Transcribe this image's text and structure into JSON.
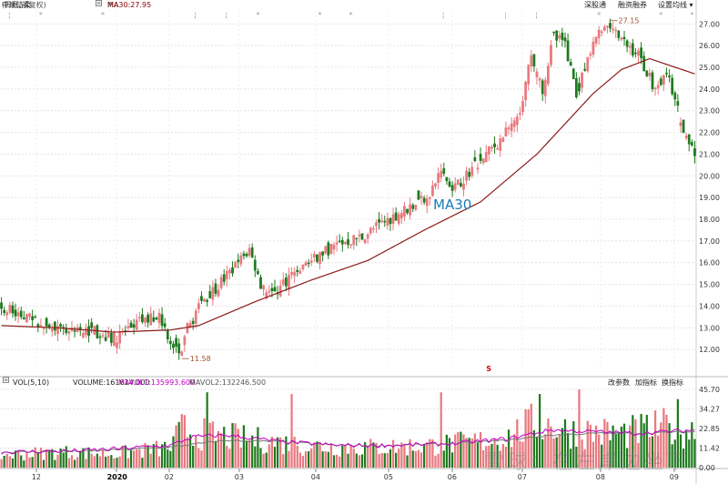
{
  "header": {
    "stock_name": "中顺洁柔",
    "period": "(日线,前复权)",
    "ma_label": "MA",
    "ma30_value": "MA30:27.95",
    "btn_shen_gu_tong": "深股通",
    "btn_rong_zi": "融资融券",
    "btn_settings": "设置均线"
  },
  "volume_header": {
    "vol_label": "VOL(5,10)",
    "volume": "VOLUME:161614.000",
    "mavol1": "MAVOL1:135993.600",
    "mavol2": "MAVOL2:132246.500",
    "btn_params": "改参数",
    "btn_add": "加指标",
    "btn_switch": "换指标"
  },
  "annotations": {
    "ma30_label": "MA30",
    "high_marker": "27.15",
    "low_marker": "11.58",
    "s_marker": "S",
    "watermark": "雪球：在左岸边坐下"
  },
  "colors": {
    "up": "#e8797f",
    "down": "#1e7a1e",
    "ma30": "#8b1a1a",
    "mavol1": "#c000c0",
    "mavol2": "#777777"
  },
  "chart_data": [
    {
      "type": "candlestick",
      "title": "中顺洁柔 (日线,前复权)",
      "ylim": [
        11.0,
        27.6
      ],
      "y_ticks": [
        "27.00",
        "26.00",
        "25.00",
        "24.00",
        "23.00",
        "22.00",
        "21.00",
        "20.00",
        "19.00",
        "18.00",
        "17.00",
        "16.00",
        "15.00",
        "14.00",
        "13.00",
        "12.00"
      ],
      "x_ticks": [
        "12",
        "2020",
        "02",
        "03",
        "04",
        "05",
        "06",
        "07",
        "08",
        "09"
      ],
      "close_path": [
        [
          0,
          14.0
        ],
        [
          8,
          13.5
        ],
        [
          16,
          13.0
        ],
        [
          24,
          12.7
        ],
        [
          32,
          12.9
        ],
        [
          40,
          12.5
        ],
        [
          48,
          13.2
        ],
        [
          56,
          13.6
        ],
        [
          60,
          12.4
        ],
        [
          64,
          11.7
        ],
        [
          66,
          13.0
        ],
        [
          72,
          14.3
        ],
        [
          80,
          15.4
        ],
        [
          88,
          16.6
        ],
        [
          92,
          15.0
        ],
        [
          96,
          14.5
        ],
        [
          104,
          15.6
        ],
        [
          112,
          16.3
        ],
        [
          120,
          16.9
        ],
        [
          128,
          17.2
        ],
        [
          136,
          17.9
        ],
        [
          144,
          18.5
        ],
        [
          152,
          19.2
        ],
        [
          156,
          20.2
        ],
        [
          160,
          19.3
        ],
        [
          168,
          20.5
        ],
        [
          176,
          21.5
        ],
        [
          184,
          22.8
        ],
        [
          188,
          25.7
        ],
        [
          192,
          24.0
        ],
        [
          196,
          26.4
        ],
        [
          200,
          26.1
        ],
        [
          204,
          23.8
        ],
        [
          208,
          25.2
        ],
        [
          212,
          26.8
        ],
        [
          216,
          27.0
        ],
        [
          220,
          26.2
        ],
        [
          226,
          25.6
        ],
        [
          232,
          24.0
        ],
        [
          236,
          24.8
        ],
        [
          240,
          23.0
        ],
        [
          244,
          21.5
        ],
        [
          246,
          21.0
        ]
      ],
      "ma30": [
        [
          0,
          13.1
        ],
        [
          20,
          13.0
        ],
        [
          40,
          12.8
        ],
        [
          60,
          12.9
        ],
        [
          70,
          13.1
        ],
        [
          90,
          14.2
        ],
        [
          110,
          15.2
        ],
        [
          130,
          16.1
        ],
        [
          150,
          17.5
        ],
        [
          170,
          18.8
        ],
        [
          190,
          21.0
        ],
        [
          210,
          23.8
        ],
        [
          220,
          24.9
        ],
        [
          230,
          25.4
        ],
        [
          246,
          24.7
        ]
      ],
      "high_marker": 27.15,
      "low_marker": 11.58
    },
    {
      "type": "bar",
      "title": "VOL(5,10)",
      "ylim": [
        0,
        45.7
      ],
      "y_ticks": [
        "45.70",
        "34.27",
        "22.85",
        "11.42",
        "0.00"
      ],
      "volume_profile": [
        [
          0,
          8
        ],
        [
          20,
          10
        ],
        [
          40,
          9
        ],
        [
          60,
          13
        ],
        [
          64,
          25
        ],
        [
          70,
          22
        ],
        [
          90,
          18
        ],
        [
          110,
          14
        ],
        [
          130,
          13
        ],
        [
          150,
          14
        ],
        [
          170,
          17
        ],
        [
          180,
          20
        ],
        [
          190,
          30
        ],
        [
          200,
          24
        ],
        [
          220,
          22
        ],
        [
          235,
          26
        ],
        [
          246,
          24
        ]
      ],
      "mavol1": [
        [
          0,
          9
        ],
        [
          30,
          10
        ],
        [
          60,
          13
        ],
        [
          68,
          18
        ],
        [
          80,
          19
        ],
        [
          100,
          15
        ],
        [
          120,
          13
        ],
        [
          140,
          13
        ],
        [
          160,
          14
        ],
        [
          180,
          17
        ],
        [
          195,
          22
        ],
        [
          210,
          21
        ],
        [
          225,
          20
        ],
        [
          246,
          22
        ]
      ],
      "mavol2": [
        [
          0,
          9
        ],
        [
          30,
          9.5
        ],
        [
          60,
          12
        ],
        [
          80,
          16
        ],
        [
          100,
          15
        ],
        [
          120,
          13
        ],
        [
          140,
          13
        ],
        [
          160,
          14
        ],
        [
          180,
          16
        ],
        [
          195,
          19
        ],
        [
          210,
          20
        ],
        [
          225,
          20
        ],
        [
          246,
          21
        ]
      ],
      "spikes": [
        [
          73,
          44
        ],
        [
          103,
          43
        ],
        [
          156,
          44
        ],
        [
          191,
          43
        ],
        [
          205,
          45.7
        ],
        [
          240,
          40
        ]
      ]
    }
  ]
}
